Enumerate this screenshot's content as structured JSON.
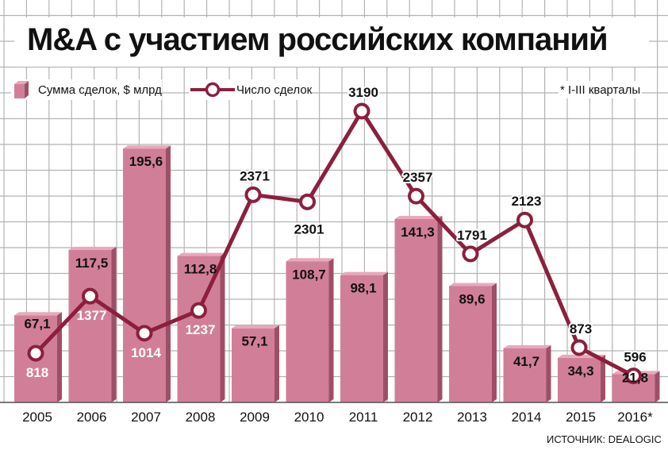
{
  "title": "M&A с участием российских компаний",
  "note": "* I-III кварталы",
  "source": "ИСТОЧНИК: DEALOGIC",
  "colors": {
    "bar_front": "#d17f99",
    "bar_top": "#e7a9bc",
    "bar_side": "#9e4f67",
    "line": "#8c1f3e",
    "grid": "#b3b3b3"
  },
  "chart_data": {
    "type": "bar",
    "categories": [
      "2005",
      "2006",
      "2007",
      "2008",
      "2009",
      "2010",
      "2011",
      "2012",
      "2013",
      "2014",
      "2015",
      "2016*"
    ],
    "series": [
      {
        "name": "Сумма сделок, $ млрд",
        "type": "bar",
        "values": [
          67.1,
          117.5,
          195.6,
          112.8,
          57.1,
          108.7,
          98.1,
          141.3,
          89.6,
          41.7,
          34.3,
          21.8
        ],
        "labels": [
          "67,1",
          "117,5",
          "195,6",
          "112,8",
          "57,1",
          "108,7",
          "98,1",
          "141,3",
          "89,6",
          "41,7",
          "34,3",
          "21,8"
        ]
      },
      {
        "name": "Число сделок",
        "type": "line",
        "values": [
          818,
          1377,
          1014,
          1237,
          2371,
          2301,
          3190,
          2357,
          1791,
          2123,
          873,
          596
        ],
        "labels": [
          "818",
          "1377",
          "1014",
          "1237",
          "2371",
          "2301",
          "3190",
          "2357",
          "1791",
          "2123",
          "873",
          "596"
        ]
      }
    ],
    "grid": true,
    "legend_position": "top-left"
  }
}
